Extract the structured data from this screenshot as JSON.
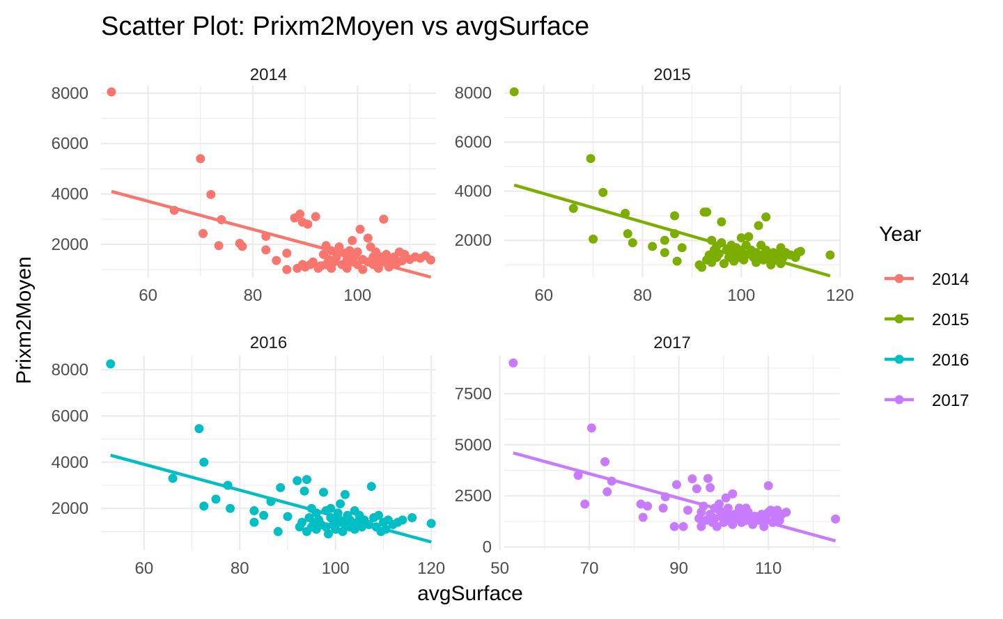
{
  "chart_data": {
    "type": "scatter",
    "title": "Scatter Plot: Prixm2Moyen vs avgSurface",
    "xlabel": "avgSurface",
    "ylabel": "Prixm2Moyen",
    "grid": true,
    "legend": {
      "title": "Year",
      "placement": "right",
      "entries": [
        "2014",
        "2015",
        "2016",
        "2017"
      ]
    },
    "trend_line": "linear",
    "panels": [
      {
        "name": "2014",
        "color": "#F8766D",
        "xlim": [
          51,
          115
        ],
        "ylim": [
          700,
          8300
        ],
        "xticks": [
          60,
          80,
          100
        ],
        "yticks": [
          2000,
          4000,
          6000,
          8000
        ],
        "trend": {
          "x": [
            53,
            114
          ],
          "y": [
            4100,
            700
          ]
        },
        "points": [
          [
            53,
            8050
          ],
          [
            65,
            3350
          ],
          [
            70,
            5400
          ],
          [
            70.5,
            2430
          ],
          [
            72,
            3980
          ],
          [
            73.5,
            1950
          ],
          [
            74,
            2980
          ],
          [
            77.5,
            2040
          ],
          [
            78,
            1920
          ],
          [
            82.5,
            2320
          ],
          [
            82.5,
            1780
          ],
          [
            84.5,
            1360
          ],
          [
            86.5,
            1000
          ],
          [
            86.5,
            1650
          ],
          [
            88,
            3050
          ],
          [
            88.5,
            1050
          ],
          [
            89,
            3200
          ],
          [
            89.5,
            1200
          ],
          [
            89.5,
            2880
          ],
          [
            90,
            1100
          ],
          [
            90.5,
            2800
          ],
          [
            91,
            1200
          ],
          [
            91.5,
            1300
          ],
          [
            92,
            3100
          ],
          [
            92.5,
            1050
          ],
          [
            93,
            1150
          ],
          [
            93.5,
            1600
          ],
          [
            94,
            1950
          ],
          [
            94,
            1200
          ],
          [
            94.5,
            1400
          ],
          [
            95,
            1750
          ],
          [
            95,
            1050
          ],
          [
            95.5,
            1300
          ],
          [
            96,
            1500
          ],
          [
            96.5,
            1900
          ],
          [
            97,
            1200
          ],
          [
            97.5,
            1650
          ],
          [
            98,
            1400
          ],
          [
            98,
            1050
          ],
          [
            98.5,
            1750
          ],
          [
            99,
            2150
          ],
          [
            99,
            1300
          ],
          [
            99.5,
            1550
          ],
          [
            100,
            1200
          ],
          [
            100,
            1700
          ],
          [
            100.5,
            2600
          ],
          [
            101,
            1400
          ],
          [
            101,
            1000
          ],
          [
            102,
            1300
          ],
          [
            102,
            2250
          ],
          [
            102.5,
            1900
          ],
          [
            103,
            1500
          ],
          [
            103,
            1200
          ],
          [
            103.5,
            1700
          ],
          [
            104,
            1350
          ],
          [
            104,
            1050
          ],
          [
            104.5,
            1500
          ],
          [
            105,
            3000
          ],
          [
            105,
            1300
          ],
          [
            105.5,
            1600
          ],
          [
            106,
            1100
          ],
          [
            106.5,
            1400
          ],
          [
            107,
            1500
          ],
          [
            107.5,
            1250
          ],
          [
            108,
            1700
          ],
          [
            108.5,
            1350
          ],
          [
            109,
            1600
          ],
          [
            110,
            1400
          ],
          [
            111,
            1500
          ],
          [
            112,
            1450
          ],
          [
            113,
            1550
          ],
          [
            114,
            1380
          ]
        ]
      },
      {
        "name": "2015",
        "color": "#7CAE00",
        "xlim": [
          52,
          120
        ],
        "ylim": [
          500,
          8300
        ],
        "xticks": [
          60,
          80,
          100,
          120
        ],
        "yticks": [
          2000,
          4000,
          6000,
          8000
        ],
        "trend": {
          "x": [
            54,
            118
          ],
          "y": [
            4250,
            550
          ]
        },
        "points": [
          [
            54,
            8050
          ],
          [
            66,
            3300
          ],
          [
            69.5,
            5330
          ],
          [
            70,
            2050
          ],
          [
            72,
            3950
          ],
          [
            76.5,
            3100
          ],
          [
            77,
            2270
          ],
          [
            78,
            1900
          ],
          [
            82,
            1750
          ],
          [
            84.5,
            1500
          ],
          [
            84.5,
            2000
          ],
          [
            86.5,
            3000
          ],
          [
            86.5,
            2270
          ],
          [
            87,
            1150
          ],
          [
            88,
            1700
          ],
          [
            91.5,
            1000
          ],
          [
            92,
            900
          ],
          [
            92.5,
            3150
          ],
          [
            93,
            1200
          ],
          [
            93,
            3150
          ],
          [
            93.5,
            1400
          ],
          [
            94,
            2000
          ],
          [
            94,
            1100
          ],
          [
            94.5,
            1600
          ],
          [
            95,
            1750
          ],
          [
            95,
            1300
          ],
          [
            95.5,
            1450
          ],
          [
            96,
            1900
          ],
          [
            96,
            2750
          ],
          [
            96.5,
            1050
          ],
          [
            97,
            1600
          ],
          [
            97.5,
            1300
          ],
          [
            98,
            1800
          ],
          [
            98,
            1500
          ],
          [
            98.5,
            1150
          ],
          [
            99,
            1400
          ],
          [
            99,
            1700
          ],
          [
            99.5,
            1300
          ],
          [
            100,
            1600
          ],
          [
            100,
            2100
          ],
          [
            100.5,
            1200
          ],
          [
            101,
            1400
          ],
          [
            101,
            1800
          ],
          [
            101.5,
            2150
          ],
          [
            102,
            1600
          ],
          [
            102.5,
            1300
          ],
          [
            103,
            1500
          ],
          [
            103,
            1100
          ],
          [
            103.5,
            2600
          ],
          [
            104,
            1800
          ],
          [
            104,
            1400
          ],
          [
            104.5,
            1200
          ],
          [
            105,
            2950
          ],
          [
            105,
            1600
          ],
          [
            105.5,
            1300
          ],
          [
            106,
            1000
          ],
          [
            106.5,
            1500
          ],
          [
            107,
            1200
          ],
          [
            107.5,
            1400
          ],
          [
            108,
            1700
          ],
          [
            108,
            1050
          ],
          [
            108.5,
            1300
          ],
          [
            109,
            1500
          ],
          [
            110,
            1400
          ],
          [
            111,
            1300
          ],
          [
            111.5,
            1500
          ],
          [
            112,
            1550
          ],
          [
            118,
            1400
          ]
        ]
      },
      {
        "name": "2016",
        "color": "#00BFC4",
        "xlim": [
          51,
          121
        ],
        "ylim": [
          200,
          8600
        ],
        "xticks": [
          60,
          80,
          100,
          120
        ],
        "yticks": [
          2000,
          4000,
          6000,
          8000
        ],
        "trend": {
          "x": [
            53,
            120
          ],
          "y": [
            4300,
            550
          ]
        },
        "points": [
          [
            53,
            8250
          ],
          [
            66,
            3300
          ],
          [
            71.5,
            5450
          ],
          [
            72.5,
            4000
          ],
          [
            72.5,
            2100
          ],
          [
            75,
            2400
          ],
          [
            77.5,
            3000
          ],
          [
            78,
            2000
          ],
          [
            83,
            1900
          ],
          [
            83,
            1400
          ],
          [
            85,
            1700
          ],
          [
            86.5,
            2300
          ],
          [
            88,
            1000
          ],
          [
            88.5,
            2900
          ],
          [
            90,
            1650
          ],
          [
            92,
            3200
          ],
          [
            92.5,
            1200
          ],
          [
            93,
            1400
          ],
          [
            93.5,
            2750
          ],
          [
            94,
            1000
          ],
          [
            94,
            3250
          ],
          [
            94.5,
            1600
          ],
          [
            95,
            2000
          ],
          [
            95,
            1200
          ],
          [
            95.5,
            1400
          ],
          [
            96,
            1800
          ],
          [
            96,
            1100
          ],
          [
            96.5,
            1500
          ],
          [
            97,
            1300
          ],
          [
            97.5,
            2700
          ],
          [
            98,
            1900
          ],
          [
            98,
            1200
          ],
          [
            98.5,
            900
          ],
          [
            99,
            1600
          ],
          [
            99,
            2000
          ],
          [
            99.5,
            1300
          ],
          [
            100,
            1500
          ],
          [
            100,
            1100
          ],
          [
            100.5,
            1800
          ],
          [
            101,
            2200
          ],
          [
            101,
            1400
          ],
          [
            101.5,
            1000
          ],
          [
            102,
            2600
          ],
          [
            102,
            1300
          ],
          [
            102.5,
            1700
          ],
          [
            103,
            1200
          ],
          [
            103,
            1500
          ],
          [
            104,
            1900
          ],
          [
            104,
            1100
          ],
          [
            104.5,
            1400
          ],
          [
            105,
            1700
          ],
          [
            105.5,
            1200
          ],
          [
            106,
            1500
          ],
          [
            107,
            1300
          ],
          [
            107.5,
            2950
          ],
          [
            108,
            1600
          ],
          [
            108.5,
            1200
          ],
          [
            109,
            1700
          ],
          [
            109.5,
            1000
          ],
          [
            110,
            1400
          ],
          [
            110.5,
            1100
          ],
          [
            111,
            1500
          ],
          [
            112,
            1300
          ],
          [
            113,
            1400
          ],
          [
            114,
            1500
          ],
          [
            116,
            1600
          ],
          [
            120,
            1350
          ]
        ]
      },
      {
        "name": "2017",
        "color": "#C77CFF",
        "xlim": [
          51,
          126
        ],
        "ylim": [
          -150,
          9350
        ],
        "xticks": [
          50,
          70,
          90,
          110
        ],
        "yticks": [
          0,
          2500,
          5000,
          7500
        ],
        "trend": {
          "x": [
            53,
            125
          ],
          "y": [
            4600,
            300
          ]
        },
        "points": [
          [
            53,
            9000
          ],
          [
            67.5,
            3500
          ],
          [
            69,
            2100
          ],
          [
            70.5,
            5820
          ],
          [
            73.5,
            4170
          ],
          [
            74,
            2700
          ],
          [
            75,
            3220
          ],
          [
            81.5,
            2100
          ],
          [
            82,
            1450
          ],
          [
            83,
            2000
          ],
          [
            86.5,
            1900
          ],
          [
            87,
            2450
          ],
          [
            89,
            1000
          ],
          [
            89.5,
            3050
          ],
          [
            91,
            1000
          ],
          [
            92,
            1800
          ],
          [
            93,
            3330
          ],
          [
            94,
            2850
          ],
          [
            94.5,
            1400
          ],
          [
            95,
            1700
          ],
          [
            95,
            1000
          ],
          [
            95.5,
            2000
          ],
          [
            96,
            1300
          ],
          [
            96.5,
            3350
          ],
          [
            97,
            1600
          ],
          [
            97,
            2900
          ],
          [
            97.5,
            1200
          ],
          [
            98,
            1900
          ],
          [
            98,
            1400
          ],
          [
            98.5,
            1000
          ],
          [
            99,
            1800
          ],
          [
            99,
            2100
          ],
          [
            99.5,
            1500
          ],
          [
            100,
            1200
          ],
          [
            100,
            1700
          ],
          [
            100.5,
            2400
          ],
          [
            101,
            1300
          ],
          [
            101,
            1900
          ],
          [
            101.5,
            1500
          ],
          [
            102,
            2600
          ],
          [
            102,
            1100
          ],
          [
            102.5,
            1600
          ],
          [
            103,
            1400
          ],
          [
            103.5,
            1900
          ],
          [
            104,
            1200
          ],
          [
            104,
            1600
          ],
          [
            105,
            1900
          ],
          [
            105,
            1300
          ],
          [
            105.5,
            1700
          ],
          [
            106,
            1400
          ],
          [
            106.5,
            1100
          ],
          [
            107,
            1500
          ],
          [
            108,
            1300
          ],
          [
            108.5,
            1600
          ],
          [
            109,
            1000
          ],
          [
            109.5,
            1400
          ],
          [
            110,
            3000
          ],
          [
            110,
            1700
          ],
          [
            110.5,
            1800
          ],
          [
            111,
            1200
          ],
          [
            111.5,
            1500
          ],
          [
            112,
            1800
          ],
          [
            112.5,
            1300
          ],
          [
            113,
            1600
          ],
          [
            114,
            1700
          ],
          [
            125,
            1370
          ]
        ]
      }
    ]
  }
}
